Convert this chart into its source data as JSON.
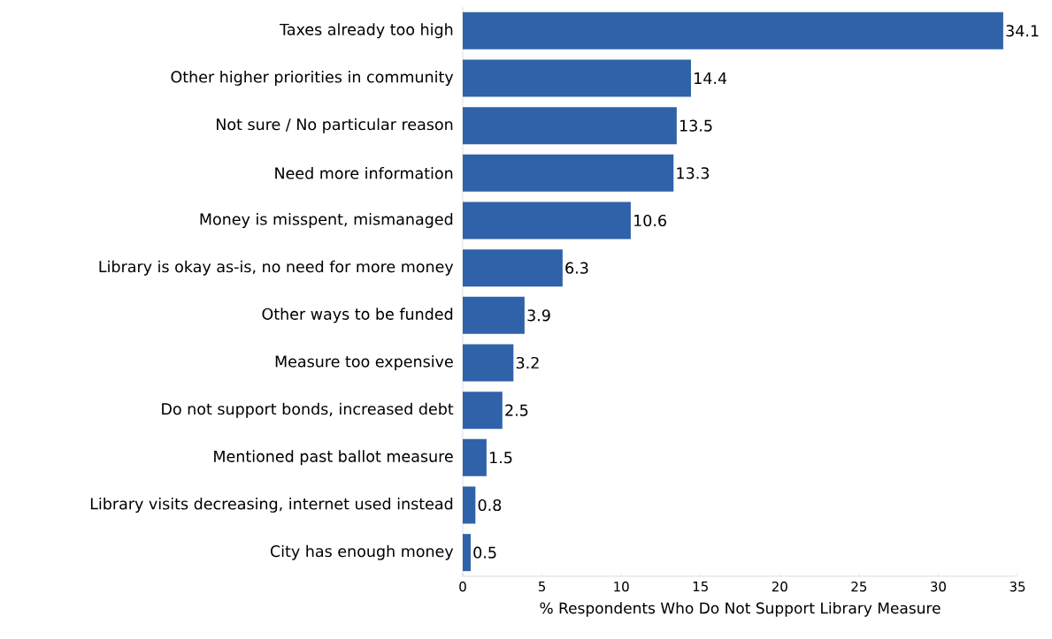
{
  "chart_data": {
    "type": "bar",
    "orientation": "horizontal",
    "xlabel": "% Respondents Who Do Not Support Library Measure",
    "categories": [
      "Taxes already too high",
      "Other higher priorities in community",
      "Not sure / No particular reason",
      "Need more information",
      "Money is misspent, mismanaged",
      "Library is okay as-is, no need for more money",
      "Other ways to be funded",
      "Measure too expensive",
      "Do not support bonds, increased debt",
      "Mentioned past ballot measure",
      "Library visits decreasing, internet used instead",
      "City has enough money"
    ],
    "values": [
      34.1,
      14.4,
      13.5,
      13.3,
      10.6,
      6.3,
      3.9,
      3.2,
      2.5,
      1.5,
      0.8,
      0.5
    ],
    "color": "#2f62a8",
    "xlim": [
      0,
      35
    ],
    "xticks": [
      0,
      5,
      10,
      15,
      20,
      25,
      30,
      35
    ],
    "data_labels": true,
    "grid": false
  }
}
